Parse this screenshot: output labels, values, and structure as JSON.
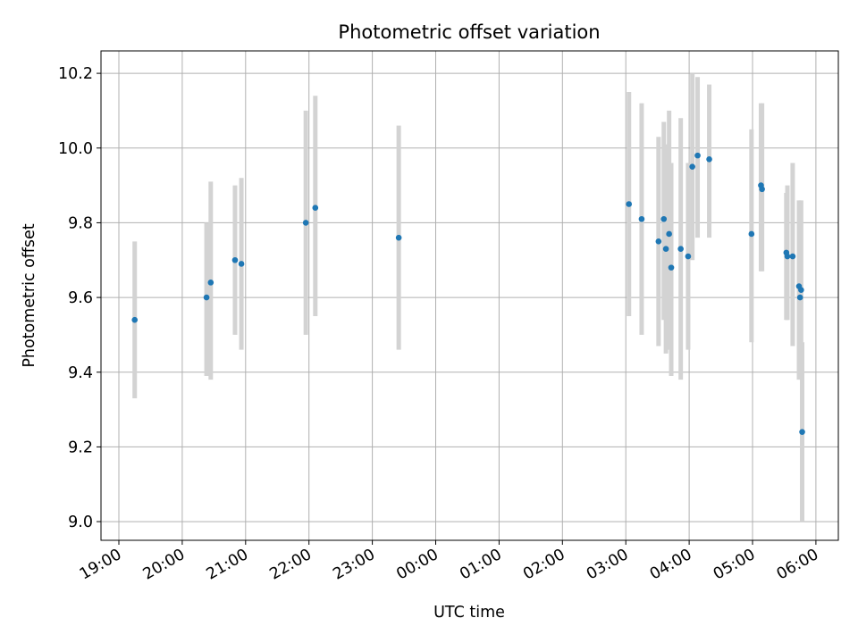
{
  "chart_data": {
    "type": "scatter",
    "title": "Photometric offset variation",
    "xlabel": "UTC time",
    "ylabel": "Photometric offset",
    "xlim": [
      "19:00",
      "06:00"
    ],
    "ylim": [
      8.95,
      10.26
    ],
    "x_ticks": [
      "19:00",
      "20:00",
      "21:00",
      "22:00",
      "23:00",
      "00:00",
      "01:00",
      "02:00",
      "03:00",
      "04:00",
      "05:00",
      "06:00"
    ],
    "y_ticks": [
      "9.0",
      "9.2",
      "9.4",
      "9.6",
      "9.8",
      "10.0",
      "10.2"
    ],
    "grid": true,
    "point_color": "#1f77b4",
    "errorbar_color": "#d3d3d3",
    "points": [
      {
        "t": "19:15",
        "y": 9.54,
        "lo": 9.33,
        "hi": 9.75
      },
      {
        "t": "20:23",
        "y": 9.6,
        "lo": 9.39,
        "hi": 9.8
      },
      {
        "t": "20:27",
        "y": 9.64,
        "lo": 9.38,
        "hi": 9.91
      },
      {
        "t": "20:50",
        "y": 9.7,
        "lo": 9.5,
        "hi": 9.9
      },
      {
        "t": "20:56",
        "y": 9.69,
        "lo": 9.46,
        "hi": 9.92
      },
      {
        "t": "21:57",
        "y": 9.8,
        "lo": 9.5,
        "hi": 10.1
      },
      {
        "t": "22:06",
        "y": 9.84,
        "lo": 9.55,
        "hi": 10.14
      },
      {
        "t": "23:25",
        "y": 9.76,
        "lo": 9.46,
        "hi": 10.06
      },
      {
        "t": "03:03",
        "y": 9.85,
        "lo": 9.55,
        "hi": 10.15
      },
      {
        "t": "03:15",
        "y": 9.81,
        "lo": 9.5,
        "hi": 10.12
      },
      {
        "t": "03:31",
        "y": 9.75,
        "lo": 9.47,
        "hi": 10.03
      },
      {
        "t": "03:36",
        "y": 9.81,
        "lo": 9.54,
        "hi": 10.07
      },
      {
        "t": "03:38",
        "y": 9.73,
        "lo": 9.45,
        "hi": 10.01
      },
      {
        "t": "03:41",
        "y": 9.77,
        "lo": 9.46,
        "hi": 10.1
      },
      {
        "t": "03:43",
        "y": 9.68,
        "lo": 9.39,
        "hi": 9.96
      },
      {
        "t": "03:52",
        "y": 9.73,
        "lo": 9.38,
        "hi": 10.08
      },
      {
        "t": "03:59",
        "y": 9.71,
        "lo": 9.46,
        "hi": 9.96
      },
      {
        "t": "04:03",
        "y": 9.95,
        "lo": 9.7,
        "hi": 10.2
      },
      {
        "t": "04:08",
        "y": 9.98,
        "lo": 9.76,
        "hi": 10.19
      },
      {
        "t": "04:19",
        "y": 9.97,
        "lo": 9.76,
        "hi": 10.17
      },
      {
        "t": "04:59",
        "y": 9.77,
        "lo": 9.48,
        "hi": 10.05
      },
      {
        "t": "05:08",
        "y": 9.9,
        "lo": 9.67,
        "hi": 10.12
      },
      {
        "t": "05:09",
        "y": 9.89,
        "lo": 9.67,
        "hi": 10.12
      },
      {
        "t": "05:32",
        "y": 9.72,
        "lo": 9.54,
        "hi": 9.88
      },
      {
        "t": "05:33",
        "y": 9.71,
        "lo": 9.54,
        "hi": 9.9
      },
      {
        "t": "05:38",
        "y": 9.71,
        "lo": 9.47,
        "hi": 9.96
      },
      {
        "t": "05:44",
        "y": 9.63,
        "lo": 9.38,
        "hi": 9.86
      },
      {
        "t": "05:45",
        "y": 9.6,
        "lo": 9.42,
        "hi": 9.84
      },
      {
        "t": "05:46",
        "y": 9.62,
        "lo": 9.38,
        "hi": 9.86
      },
      {
        "t": "05:47",
        "y": 9.24,
        "lo": 9.0,
        "hi": 9.48
      }
    ]
  }
}
